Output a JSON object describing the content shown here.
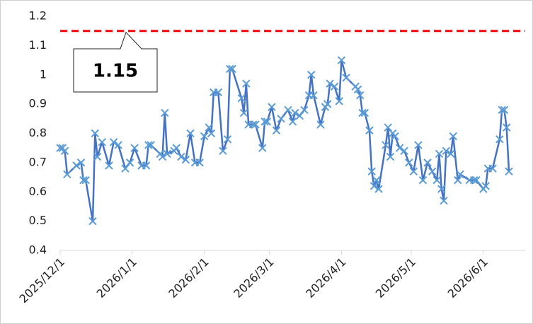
{
  "chart_data": {
    "type": "line",
    "x": [
      "2025/12/1",
      "2025/12/2",
      "2025/12/3",
      "2025/12/4",
      "2025/12/8",
      "2025/12/10",
      "2025/12/11",
      "2025/12/12",
      "2025/12/15",
      "2025/12/16",
      "2025/12/17",
      "2025/12/19",
      "2025/12/22",
      "2025/12/24",
      "2025/12/26",
      "2025/12/29",
      "2025/12/31",
      "2026/1/2",
      "2026/1/5",
      "2026/1/7",
      "2026/1/8",
      "2026/1/9",
      "2026/1/13",
      "2026/1/14",
      "2026/1/15",
      "2026/1/16",
      "2026/1/19",
      "2026/1/20",
      "2026/1/22",
      "2026/1/24",
      "2026/1/26",
      "2026/1/28",
      "2026/1/30",
      "2026/2/1",
      "2026/2/3",
      "2026/2/4",
      "2026/2/5",
      "2026/2/7",
      "2026/2/9",
      "2026/2/11",
      "2026/2/12",
      "2026/2/13",
      "2026/2/17",
      "2026/2/18",
      "2026/2/19",
      "2026/2/20",
      "2026/2/22",
      "2026/2/23",
      "2026/2/26",
      "2026/2/27",
      "2026/2/28",
      "2026/3/2",
      "2026/3/4",
      "2026/3/6",
      "2026/3/9",
      "2026/3/11",
      "2026/3/12",
      "2026/3/14",
      "2026/3/16",
      "2026/3/18",
      "2026/3/19",
      "2026/3/20",
      "2026/3/23",
      "2026/3/25",
      "2026/3/26",
      "2026/3/27",
      "2026/3/29",
      "2026/3/31",
      "2026/4/1",
      "2026/4/3",
      "2026/4/7",
      "2026/4/8",
      "2026/4/9",
      "2026/4/10",
      "2026/4/11",
      "2026/4/13",
      "2026/4/14",
      "2026/4/15",
      "2026/4/16",
      "2026/4/17",
      "2026/4/20",
      "2026/4/21",
      "2026/4/22",
      "2026/4/23",
      "2026/4/24",
      "2026/4/26",
      "2026/4/28",
      "2026/4/30",
      "2026/5/2",
      "2026/5/4",
      "2026/5/6",
      "2026/5/8",
      "2026/5/10",
      "2026/5/12",
      "2026/5/13",
      "2026/5/14",
      "2026/5/15",
      "2026/5/16",
      "2026/5/18",
      "2026/5/19",
      "2026/5/21",
      "2026/5/22",
      "2026/5/26",
      "2026/5/28",
      "2026/5/29",
      "2026/6/1",
      "2026/6/2",
      "2026/6/3",
      "2026/6/5",
      "2026/6/8",
      "2026/6/9",
      "2026/6/10",
      "2026/6/11",
      "2026/6/12"
    ],
    "values": [
      0.75,
      0.75,
      0.74,
      0.66,
      0.69,
      0.7,
      0.64,
      0.64,
      0.5,
      0.8,
      0.72,
      0.77,
      0.69,
      0.77,
      0.76,
      0.68,
      0.7,
      0.75,
      0.69,
      0.69,
      0.76,
      0.76,
      0.73,
      0.72,
      0.87,
      0.73,
      0.74,
      0.75,
      0.72,
      0.71,
      0.8,
      0.7,
      0.7,
      0.79,
      0.82,
      0.8,
      0.94,
      0.94,
      0.74,
      0.78,
      1.02,
      1.02,
      0.92,
      0.87,
      0.97,
      0.83,
      0.83,
      0.83,
      0.75,
      0.84,
      0.84,
      0.89,
      0.81,
      0.85,
      0.88,
      0.84,
      0.87,
      0.86,
      0.88,
      0.93,
      1.0,
      0.93,
      0.83,
      0.89,
      0.9,
      0.97,
      0.96,
      0.91,
      1.05,
      0.99,
      0.96,
      0.95,
      0.93,
      0.87,
      0.87,
      0.81,
      0.67,
      0.62,
      0.64,
      0.61,
      0.76,
      0.82,
      0.72,
      0.8,
      0.79,
      0.75,
      0.74,
      0.7,
      0.67,
      0.76,
      0.64,
      0.7,
      0.67,
      0.64,
      0.73,
      0.61,
      0.57,
      0.74,
      0.73,
      0.79,
      0.64,
      0.66,
      0.64,
      0.64,
      0.64,
      0.61,
      0.62,
      0.68,
      0.68,
      0.78,
      0.88,
      0.88,
      0.82,
      0.67
    ],
    "color": "#4472c4",
    "marker_color": "#5b9bd5",
    "xlim": [
      "2025/12/1",
      "2026/6/19"
    ],
    "xticks": [
      "2025/12/1",
      "2026/1/1",
      "2026/2/1",
      "2026/3/1",
      "2026/4/1",
      "2026/5/1",
      "2026/6/1"
    ],
    "ylim": [
      0.4,
      1.2
    ],
    "yticks": [
      0.4,
      0.5,
      0.6,
      0.7,
      0.8,
      0.9,
      1,
      1.1,
      1.2
    ],
    "reference_line": {
      "value": 1.15,
      "color": "#ff0000"
    }
  }
}
